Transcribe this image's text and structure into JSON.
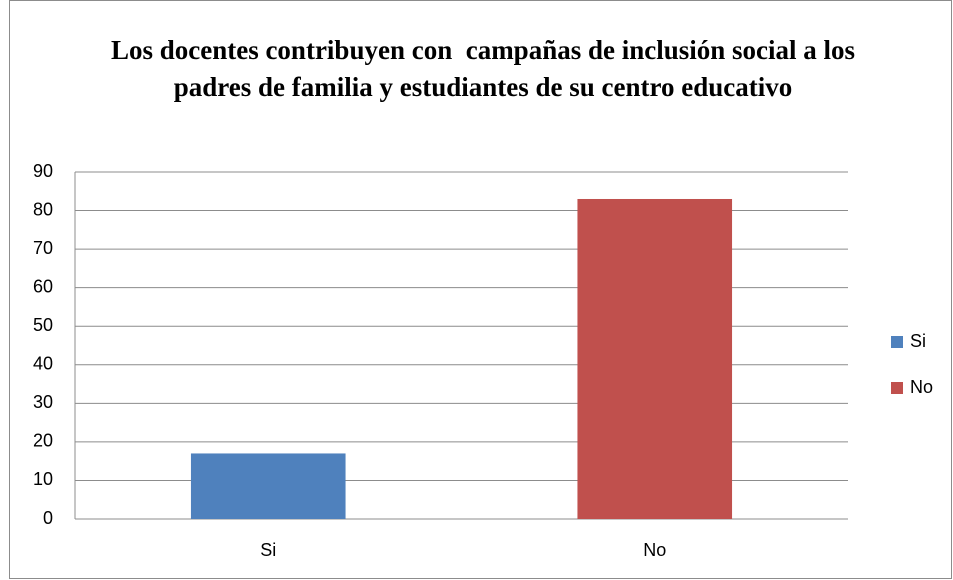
{
  "chart_data": {
    "type": "bar",
    "title": "Los docentes contribuyen con  campañas de inclusión social a los padres de familia y estudiantes de su centro educativo",
    "categories": [
      "Si",
      "No"
    ],
    "values": [
      17,
      83
    ],
    "colors": [
      "#4f81bd",
      "#c0504d"
    ],
    "ylim": [
      0,
      90
    ],
    "yticks": [
      0,
      10,
      20,
      30,
      40,
      50,
      60,
      70,
      80,
      90
    ],
    "grid": true,
    "legend": "right"
  }
}
